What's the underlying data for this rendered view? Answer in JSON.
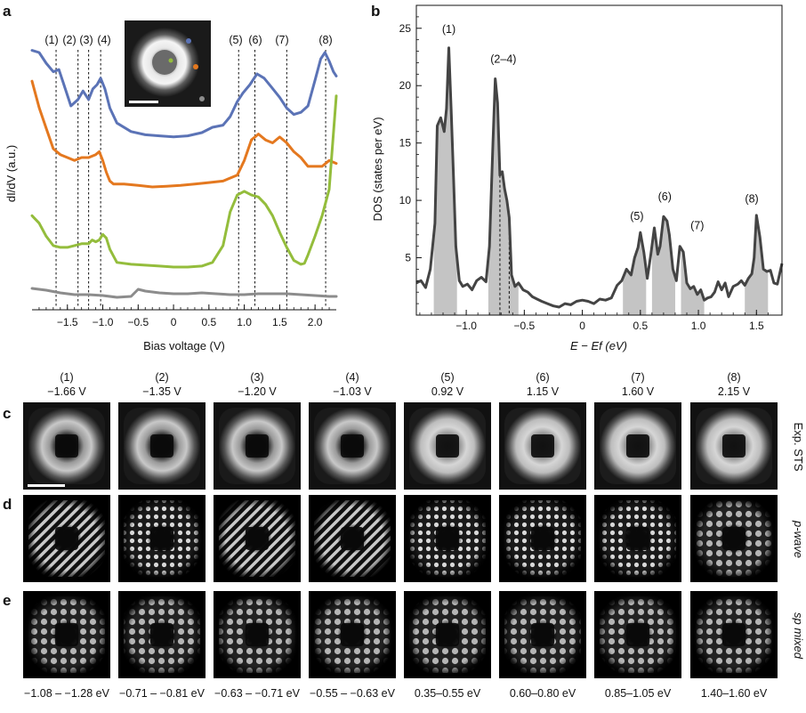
{
  "panel_letters": [
    "a",
    "b",
    "c",
    "d",
    "e"
  ],
  "row_labels": [
    "Exp. STS",
    "p-wave",
    "sp mixed"
  ],
  "column_headers": [
    {
      "index": "(1)",
      "voltage": "−1.66 V"
    },
    {
      "index": "(2)",
      "voltage": "−1.35 V"
    },
    {
      "index": "(3)",
      "voltage": "−1.20 V"
    },
    {
      "index": "(4)",
      "voltage": "−1.03 V"
    },
    {
      "index": "(5)",
      "voltage": "0.92 V"
    },
    {
      "index": "(6)",
      "voltage": "1.15 V"
    },
    {
      "index": "(7)",
      "voltage": "1.60 V"
    },
    {
      "index": "(8)",
      "voltage": "2.15 V"
    }
  ],
  "energy_ranges": [
    "−1.08 – −1.28 eV",
    "−0.71 – −0.81 eV",
    "−0.63 – −0.71 eV",
    "−0.55 – −0.63 eV",
    "0.35–0.55 eV",
    "0.60–0.80 eV",
    "0.85–1.05 eV",
    "1.40–1.60 eV"
  ],
  "chart_data": [
    {
      "panel": "a",
      "type": "line",
      "xlabel": "Bias voltage (V)",
      "ylabel": "dI/dV (a.u.)",
      "xlim": [
        -2.0,
        2.3
      ],
      "xticks": [
        -1.5,
        -1.0,
        -0.5,
        0,
        0.5,
        1.0,
        1.5,
        2.0
      ],
      "xtick_labels": [
        "−1.5",
        "−1.0",
        "−0.5",
        "0",
        "0.5",
        "1.0",
        "1.5",
        "2.0"
      ],
      "peak_labels": [
        "(1)",
        "(2)",
        "(3)",
        "(4)",
        "(5)",
        "(6)",
        "(7)",
        "(8)"
      ],
      "peak_positions": [
        -1.66,
        -1.35,
        -1.2,
        -1.03,
        0.92,
        1.15,
        1.6,
        2.15
      ],
      "series": [
        {
          "color": "#5b73b6",
          "x": [
            -2.0,
            -1.9,
            -1.8,
            -1.7,
            -1.62,
            -1.55,
            -1.45,
            -1.35,
            -1.28,
            -1.2,
            -1.14,
            -1.08,
            -1.03,
            -0.97,
            -0.9,
            -0.8,
            -0.6,
            -0.4,
            -0.2,
            0.0,
            0.2,
            0.4,
            0.55,
            0.7,
            0.8,
            0.9,
            0.98,
            1.08,
            1.18,
            1.28,
            1.38,
            1.5,
            1.6,
            1.7,
            1.8,
            1.9,
            2.0,
            2.08,
            2.14,
            2.2,
            2.26,
            2.3
          ],
          "y": [
            11.6,
            11.5,
            11.0,
            10.6,
            10.7,
            10.0,
            9.0,
            9.3,
            9.7,
            9.3,
            9.8,
            10.0,
            10.3,
            9.8,
            8.9,
            8.2,
            7.8,
            7.65,
            7.6,
            7.55,
            7.6,
            7.75,
            8.0,
            8.1,
            8.5,
            9.2,
            9.6,
            10.0,
            10.5,
            10.3,
            9.9,
            9.4,
            8.9,
            8.6,
            8.7,
            9.0,
            10.2,
            11.2,
            11.5,
            11.1,
            10.6,
            10.4
          ]
        },
        {
          "color": "#e4781f",
          "x": [
            -2.0,
            -1.9,
            -1.8,
            -1.7,
            -1.6,
            -1.5,
            -1.4,
            -1.3,
            -1.2,
            -1.1,
            -1.05,
            -1.0,
            -0.95,
            -0.9,
            -0.85,
            -0.7,
            -0.5,
            -0.3,
            -0.1,
            0.1,
            0.3,
            0.5,
            0.7,
            0.9,
            1.0,
            1.1,
            1.2,
            1.3,
            1.4,
            1.5,
            1.6,
            1.7,
            1.8,
            1.9,
            2.0,
            2.1,
            2.2,
            2.3
          ],
          "y": [
            9.3,
            8.4,
            7.7,
            7.0,
            6.8,
            6.7,
            6.6,
            6.7,
            6.7,
            6.8,
            6.9,
            6.6,
            6.2,
            5.9,
            5.8,
            5.8,
            5.75,
            5.7,
            5.72,
            5.75,
            5.8,
            5.85,
            5.9,
            6.1,
            6.6,
            7.3,
            7.5,
            7.3,
            7.2,
            7.4,
            7.2,
            6.9,
            6.7,
            6.4,
            6.4,
            6.4,
            6.6,
            6.5
          ]
        },
        {
          "color": "#94bd3c",
          "x": [
            -2.0,
            -1.9,
            -1.8,
            -1.7,
            -1.6,
            -1.5,
            -1.4,
            -1.3,
            -1.2,
            -1.15,
            -1.1,
            -1.05,
            -1.0,
            -0.95,
            -0.9,
            -0.8,
            -0.6,
            -0.4,
            -0.2,
            0.0,
            0.2,
            0.4,
            0.55,
            0.7,
            0.8,
            0.9,
            1.0,
            1.1,
            1.2,
            1.3,
            1.4,
            1.5,
            1.6,
            1.7,
            1.8,
            1.85,
            1.9,
            2.0,
            2.1,
            2.2,
            2.25,
            2.3
          ],
          "y": [
            4.6,
            4.2,
            3.5,
            3.0,
            2.9,
            2.9,
            3.0,
            3.1,
            3.1,
            3.3,
            3.2,
            3.3,
            3.6,
            3.4,
            2.8,
            2.1,
            2.0,
            1.95,
            1.9,
            1.85,
            1.85,
            1.9,
            2.1,
            3.0,
            4.8,
            5.7,
            5.9,
            5.7,
            5.6,
            5.2,
            4.6,
            3.7,
            2.9,
            2.2,
            2.0,
            2.05,
            2.5,
            3.5,
            4.6,
            6.0,
            8.5,
            11.0
          ]
        },
        {
          "color": "#8c8c8c",
          "x": [
            -2.0,
            -1.8,
            -1.6,
            -1.4,
            -1.2,
            -1.0,
            -0.8,
            -0.6,
            -0.5,
            -0.4,
            -0.2,
            0.0,
            0.2,
            0.4,
            0.6,
            0.8,
            1.0,
            1.2,
            1.4,
            1.6,
            1.8,
            2.0,
            2.2,
            2.3
          ],
          "y": [
            0.6,
            0.5,
            0.35,
            0.25,
            0.25,
            0.2,
            0.1,
            0.15,
            0.55,
            0.45,
            0.35,
            0.3,
            0.3,
            0.35,
            0.3,
            0.25,
            0.25,
            0.3,
            0.3,
            0.3,
            0.25,
            0.2,
            0.15,
            0.15
          ]
        }
      ],
      "inset_markers": [
        {
          "color": "#5b73b6"
        },
        {
          "color": "#e4781f"
        },
        {
          "color": "#94bd3c"
        },
        {
          "color": "#8c8c8c"
        }
      ]
    },
    {
      "panel": "b",
      "type": "line",
      "xlabel": "E − Ef (eV)",
      "ylabel": "DOS (states per eV)",
      "xlim": [
        -1.43,
        1.72
      ],
      "ylim": [
        0,
        27
      ],
      "xticks": [
        -1.0,
        -0.5,
        0,
        0.5,
        1.0,
        1.5
      ],
      "xtick_labels": [
        "−1.0",
        "−0.5",
        "0",
        "0.5",
        "1.0",
        "1.5"
      ],
      "yticks": [
        5,
        10,
        15,
        20,
        25
      ],
      "ytick_labels": [
        "5",
        "10",
        "15",
        "20",
        "25"
      ],
      "peak_labels": [
        {
          "text": "(1)",
          "x": -1.15,
          "y": 24.6
        },
        {
          "text": "(2–4)",
          "x": -0.68,
          "y": 22.0
        },
        {
          "text": "(5)",
          "x": 0.47,
          "y": 8.3
        },
        {
          "text": "(6)",
          "x": 0.71,
          "y": 10.0
        },
        {
          "text": "(7)",
          "x": 0.99,
          "y": 7.5
        },
        {
          "text": "(8)",
          "x": 1.46,
          "y": 9.8
        }
      ],
      "shaded_ranges": [
        [
          -1.28,
          -1.08
        ],
        [
          -0.81,
          -0.55
        ],
        [
          0.35,
          0.55
        ],
        [
          0.6,
          0.8
        ],
        [
          0.85,
          1.05
        ],
        [
          1.4,
          1.6
        ]
      ],
      "dashed_lines": [
        -0.71,
        -0.63
      ],
      "x": [
        -1.43,
        -1.39,
        -1.35,
        -1.31,
        -1.27,
        -1.25,
        -1.22,
        -1.19,
        -1.17,
        -1.15,
        -1.13,
        -1.11,
        -1.09,
        -1.06,
        -1.03,
        -0.99,
        -0.95,
        -0.91,
        -0.87,
        -0.83,
        -0.8,
        -0.77,
        -0.75,
        -0.73,
        -0.71,
        -0.69,
        -0.67,
        -0.65,
        -0.63,
        -0.61,
        -0.58,
        -0.55,
        -0.51,
        -0.47,
        -0.43,
        -0.39,
        -0.35,
        -0.3,
        -0.25,
        -0.2,
        -0.15,
        -0.1,
        -0.05,
        0.0,
        0.05,
        0.1,
        0.15,
        0.2,
        0.25,
        0.3,
        0.34,
        0.38,
        0.42,
        0.45,
        0.48,
        0.5,
        0.53,
        0.56,
        0.59,
        0.62,
        0.65,
        0.67,
        0.7,
        0.73,
        0.75,
        0.78,
        0.81,
        0.84,
        0.87,
        0.9,
        0.93,
        0.96,
        0.99,
        1.02,
        1.05,
        1.08,
        1.11,
        1.14,
        1.17,
        1.2,
        1.23,
        1.26,
        1.3,
        1.34,
        1.37,
        1.4,
        1.43,
        1.46,
        1.48,
        1.5,
        1.53,
        1.56,
        1.59,
        1.62,
        1.65,
        1.68,
        1.72
      ],
      "y": [
        2.8,
        3.0,
        2.4,
        4.0,
        8.0,
        16.5,
        17.2,
        16.0,
        18.0,
        23.3,
        18.0,
        12.0,
        6.0,
        3.0,
        2.5,
        2.7,
        2.2,
        3.0,
        3.3,
        2.9,
        6.0,
        15.0,
        20.6,
        18.5,
        12.2,
        12.5,
        11.0,
        10.0,
        8.5,
        3.5,
        2.5,
        2.8,
        2.2,
        2.0,
        1.6,
        1.4,
        1.2,
        1.0,
        0.8,
        0.7,
        1.0,
        0.9,
        1.2,
        1.3,
        1.2,
        1.0,
        1.4,
        1.3,
        1.5,
        2.6,
        3.0,
        4.0,
        3.5,
        5.0,
        5.9,
        7.2,
        5.5,
        3.2,
        5.3,
        7.6,
        5.3,
        6.0,
        8.6,
        8.2,
        7.0,
        4.0,
        3.0,
        6.0,
        5.5,
        2.8,
        2.3,
        2.5,
        1.8,
        2.2,
        1.3,
        1.5,
        1.6,
        2.0,
        2.9,
        2.2,
        2.8,
        1.6,
        2.5,
        2.7,
        3.0,
        2.6,
        3.2,
        3.6,
        5.0,
        8.7,
        6.8,
        4.0,
        3.8,
        3.9,
        2.8,
        2.7,
        4.5
      ]
    }
  ]
}
